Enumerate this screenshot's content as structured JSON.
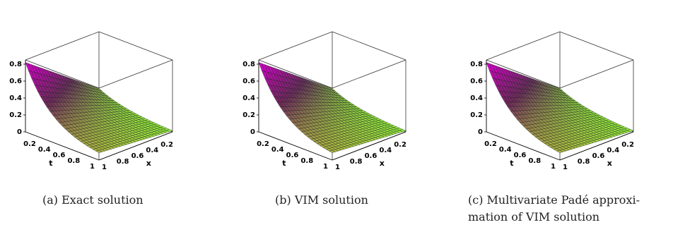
{
  "chart_data": [
    {
      "type": "surface",
      "caption": "(a) Exact solution",
      "z_ticks": [
        "0",
        "0.2",
        "0.4",
        "0.6",
        "0.8"
      ],
      "t_ticks": [
        "0.2",
        "0.4",
        "0.6",
        "0.8",
        "1"
      ],
      "x_ticks": [
        "1",
        "0.8",
        "0.6",
        "0.4",
        "0.2"
      ],
      "t_label": "t",
      "x_label": "x",
      "t_range": [
        0,
        1
      ],
      "x_range": [
        0,
        1
      ],
      "z_range": [
        0,
        0.85
      ]
    },
    {
      "type": "surface",
      "caption": "(b) VIM solution",
      "z_ticks": [
        "0",
        "0.2",
        "0.4",
        "0.6",
        "0.8"
      ],
      "t_ticks": [
        "0.2",
        "0.4",
        "0.6",
        "0.8",
        "1"
      ],
      "x_ticks": [
        "1",
        "0.8",
        "0.6",
        "0.4",
        "0.2"
      ],
      "t_label": "t",
      "x_label": "x",
      "t_range": [
        0,
        1
      ],
      "x_range": [
        0,
        1
      ],
      "z_range": [
        0,
        0.85
      ]
    },
    {
      "type": "surface",
      "caption_line1": "(c) Multivariate Padé approxi-",
      "caption_line2": "mation of VIM solution",
      "z_ticks": [
        "0",
        "0.2",
        "0.4",
        "0.6",
        "0.8"
      ],
      "t_ticks": [
        "0.2",
        "0.4",
        "0.6",
        "0.8",
        "1"
      ],
      "x_ticks": [
        "1",
        "0.8",
        "0.6",
        "0.4",
        "0.2"
      ],
      "t_label": "t",
      "x_label": "x",
      "t_range": [
        0,
        1
      ],
      "x_range": [
        0,
        1
      ],
      "z_range": [
        0,
        0.85
      ]
    }
  ]
}
